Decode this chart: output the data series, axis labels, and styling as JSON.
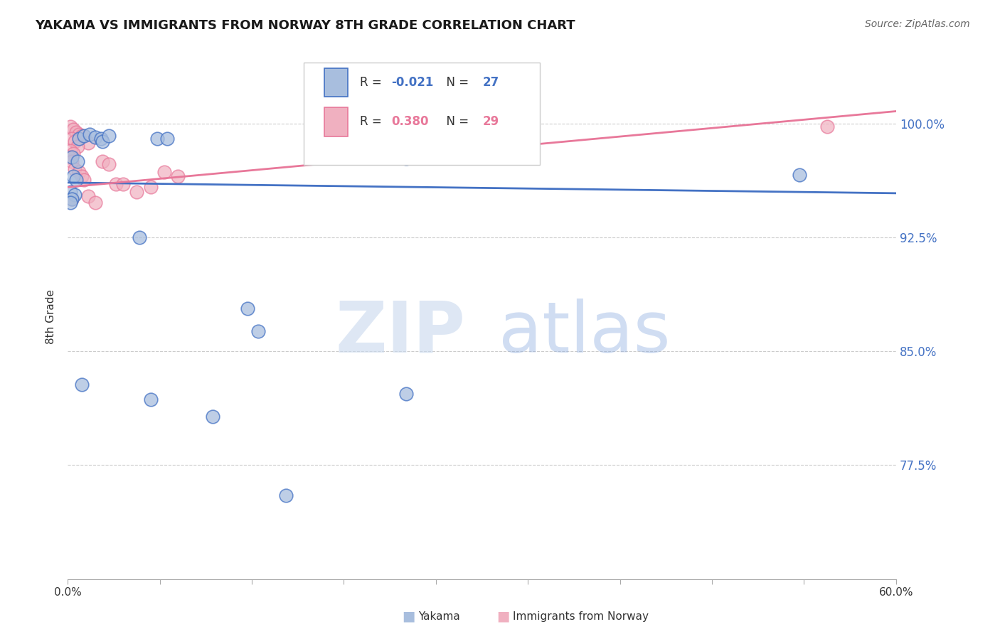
{
  "title": "YAKAMA VS IMMIGRANTS FROM NORWAY 8TH GRADE CORRELATION CHART",
  "source": "Source: ZipAtlas.com",
  "ylabel": "8th Grade",
  "y_tick_labels": [
    "100.0%",
    "92.5%",
    "85.0%",
    "77.5%"
  ],
  "y_tick_values": [
    1.0,
    0.925,
    0.85,
    0.775
  ],
  "x_min": 0.0,
  "x_max": 0.6,
  "y_min": 0.7,
  "y_max": 1.045,
  "legend_r1_label": "R = ",
  "legend_r1_val": "-0.021",
  "legend_n1_label": "N = ",
  "legend_n1_val": "27",
  "legend_r2_label": "R = ",
  "legend_r2_val": "0.380",
  "legend_n2_label": "N = ",
  "legend_n2_val": "29",
  "watermark_zip": "ZIP",
  "watermark_atlas": "atlas",
  "blue_color": "#4472c4",
  "pink_color": "#e8789a",
  "blue_fill": "#a8bede",
  "pink_fill": "#f0b0c0",
  "blue_scatter": [
    [
      0.008,
      0.99
    ],
    [
      0.012,
      0.992
    ],
    [
      0.016,
      0.993
    ],
    [
      0.02,
      0.991
    ],
    [
      0.024,
      0.99
    ],
    [
      0.025,
      0.988
    ],
    [
      0.03,
      0.992
    ],
    [
      0.065,
      0.99
    ],
    [
      0.072,
      0.99
    ],
    [
      0.003,
      0.978
    ],
    [
      0.007,
      0.975
    ],
    [
      0.004,
      0.965
    ],
    [
      0.006,
      0.963
    ],
    [
      0.002,
      0.955
    ],
    [
      0.005,
      0.953
    ],
    [
      0.003,
      0.95
    ],
    [
      0.002,
      0.948
    ],
    [
      0.245,
      0.977
    ],
    [
      0.53,
      0.966
    ],
    [
      0.052,
      0.925
    ],
    [
      0.13,
      0.878
    ],
    [
      0.138,
      0.863
    ],
    [
      0.01,
      0.828
    ],
    [
      0.245,
      0.822
    ],
    [
      0.06,
      0.818
    ],
    [
      0.105,
      0.807
    ],
    [
      0.158,
      0.755
    ]
  ],
  "pink_scatter": [
    [
      0.002,
      0.998
    ],
    [
      0.004,
      0.996
    ],
    [
      0.006,
      0.994
    ],
    [
      0.008,
      0.993
    ],
    [
      0.01,
      0.992
    ],
    [
      0.003,
      0.99
    ],
    [
      0.005,
      0.988
    ],
    [
      0.015,
      0.987
    ],
    [
      0.007,
      0.985
    ],
    [
      0.002,
      0.982
    ],
    [
      0.004,
      0.98
    ],
    [
      0.001,
      0.978
    ],
    [
      0.003,
      0.975
    ],
    [
      0.025,
      0.975
    ],
    [
      0.03,
      0.973
    ],
    [
      0.005,
      0.97
    ],
    [
      0.008,
      0.968
    ],
    [
      0.07,
      0.968
    ],
    [
      0.08,
      0.965
    ],
    [
      0.01,
      0.965
    ],
    [
      0.012,
      0.963
    ],
    [
      0.035,
      0.96
    ],
    [
      0.04,
      0.96
    ],
    [
      0.06,
      0.958
    ],
    [
      0.05,
      0.955
    ],
    [
      0.015,
      0.952
    ],
    [
      0.003,
      0.95
    ],
    [
      0.02,
      0.948
    ],
    [
      0.55,
      0.998
    ]
  ],
  "blue_line_x": [
    0.0,
    0.6
  ],
  "blue_line_y": [
    0.961,
    0.954
  ],
  "pink_line_x": [
    0.0,
    0.6
  ],
  "pink_line_y": [
    0.958,
    1.008
  ]
}
